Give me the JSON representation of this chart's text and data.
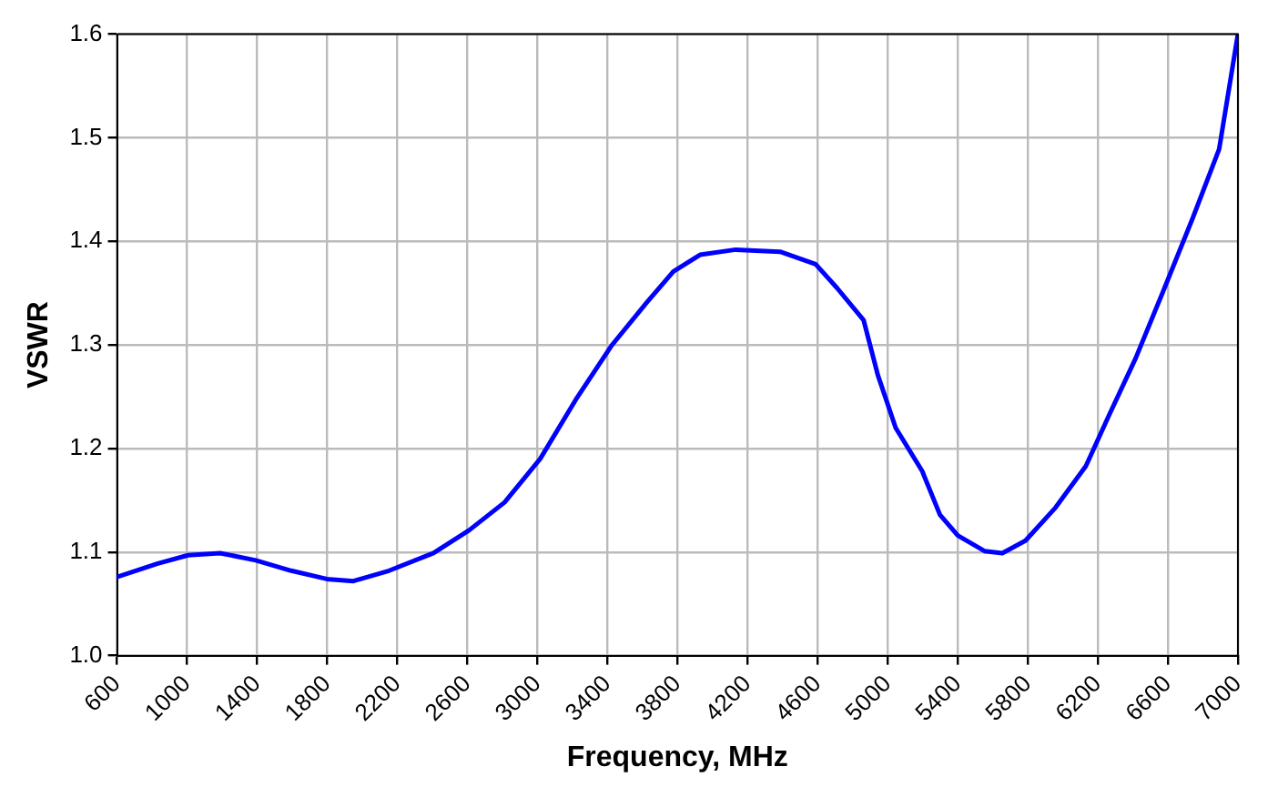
{
  "chart_data": {
    "type": "line",
    "xlabel": "Frequency, MHz",
    "ylabel": "VSWR",
    "xlim": [
      600,
      7000
    ],
    "xticks": [
      600,
      1000,
      1400,
      1800,
      2200,
      2600,
      3000,
      3400,
      3800,
      4200,
      4600,
      5000,
      5400,
      5800,
      6200,
      6600,
      7000
    ],
    "ylim": [
      1.0,
      1.6
    ],
    "yticks": [
      {
        "value": 1,
        "label": "1.0"
      },
      1.1,
      1.2,
      1.3,
      1.4,
      1.5,
      1.6
    ],
    "grid": true,
    "legend": false,
    "marker": "none",
    "line_style": "solid",
    "series": [
      {
        "color": "#0000ff",
        "x": [
          600,
          833,
          1006,
          1189,
          1392,
          1595,
          1798,
          1950,
          2153,
          2407,
          2610,
          2813,
          3016,
          3219,
          3422,
          3625,
          3777,
          3929,
          4132,
          4386,
          4589,
          4711,
          4863,
          4944,
          5046,
          5198,
          5299,
          5401,
          5553,
          5655,
          5787,
          5959,
          6132,
          6264,
          6416,
          6569,
          6741,
          6893,
          7000
        ],
        "values": [
          1.076,
          1.089,
          1.097,
          1.099,
          1.092,
          1.082,
          1.074,
          1.072,
          1.082,
          1.099,
          1.121,
          1.148,
          1.19,
          1.247,
          1.299,
          1.341,
          1.371,
          1.387,
          1.392,
          1.39,
          1.378,
          1.355,
          1.324,
          1.271,
          1.22,
          1.178,
          1.136,
          1.116,
          1.101,
          1.099,
          1.111,
          1.143,
          1.183,
          1.232,
          1.287,
          1.35,
          1.422,
          1.489,
          1.6
        ]
      }
    ]
  }
}
